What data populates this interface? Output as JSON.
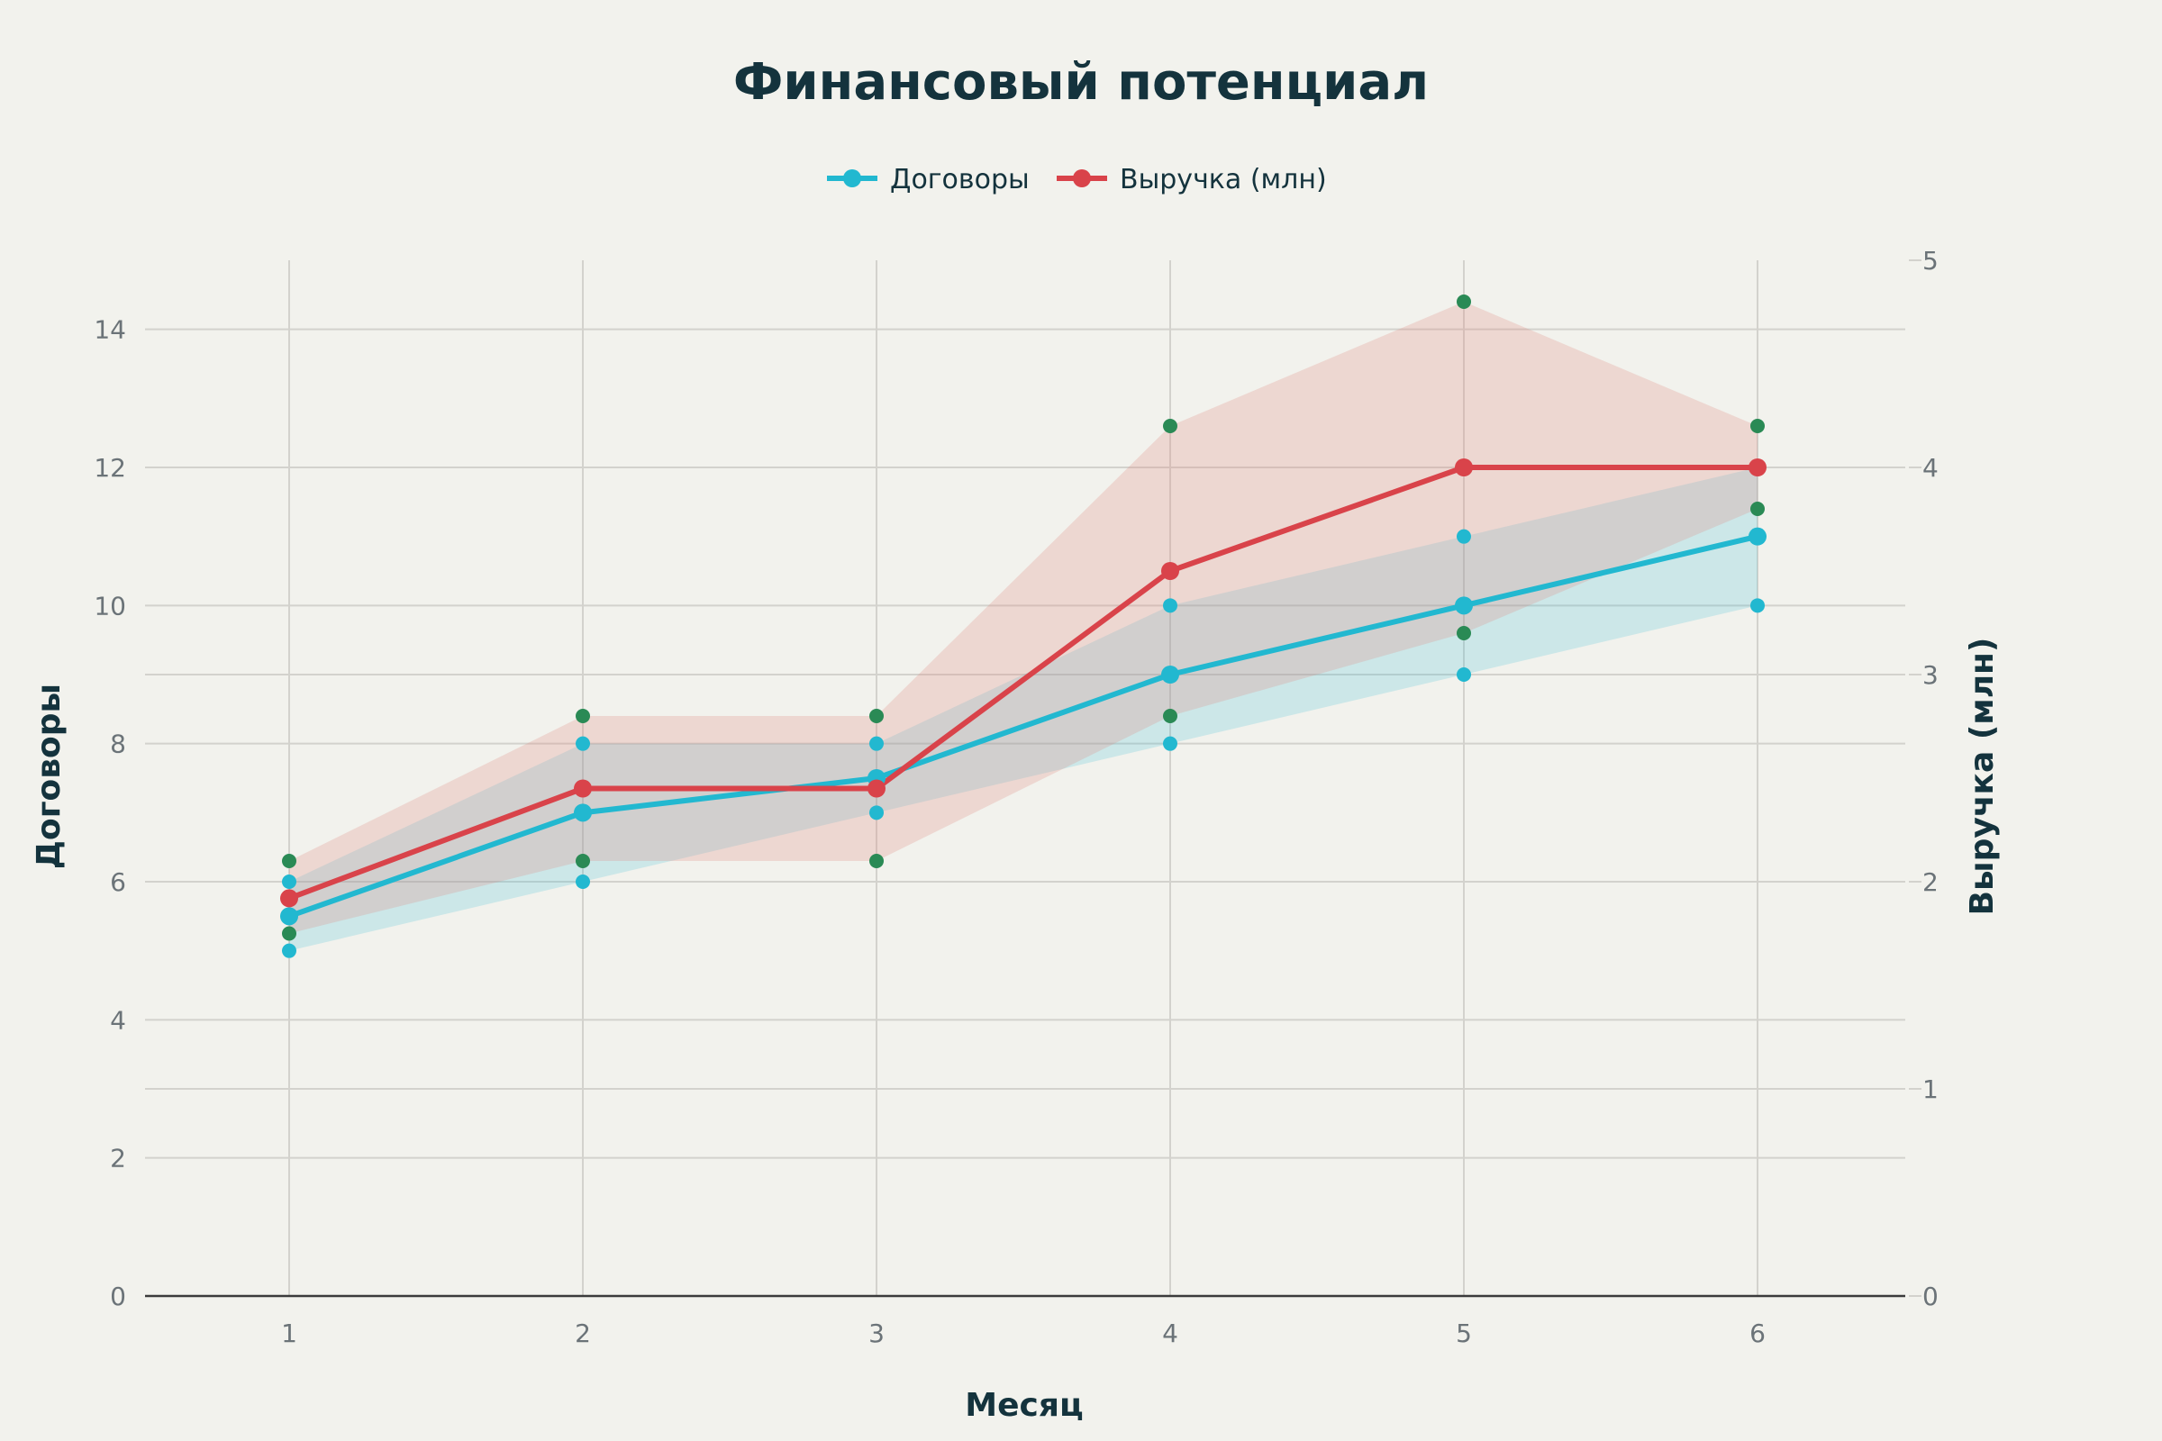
{
  "chart_data": {
    "type": "line",
    "title": "Финансовый потенциал",
    "xlabel": "Месяц",
    "ylabel": "Договоры",
    "y2label": "Выручка (млн)",
    "x": [
      1,
      2,
      3,
      4,
      5,
      6
    ],
    "xticks": [
      "1",
      "2",
      "3",
      "4",
      "5",
      "6"
    ],
    "ylim": [
      0,
      15
    ],
    "yticks": [
      0,
      2,
      4,
      6,
      8,
      10,
      12,
      14
    ],
    "y2lim": [
      0,
      5
    ],
    "y2ticks": [
      0,
      1,
      2,
      3,
      4,
      5
    ],
    "grid": true,
    "legend_position": "top-center",
    "series": [
      {
        "name": "Договоры",
        "axis": "left",
        "color": "#22b8d0",
        "band_color": "#22b8d0",
        "values": [
          5.5,
          7,
          7.5,
          9,
          10,
          11
        ],
        "upper": [
          6,
          8,
          8,
          10,
          11,
          12
        ],
        "lower": [
          5,
          6,
          7,
          8,
          9,
          10
        ]
      },
      {
        "name": "Выручка (млн)",
        "axis": "right",
        "color": "#d9434a",
        "band_color": "#e08880",
        "values": [
          1.92,
          2.45,
          2.45,
          3.5,
          4.0,
          4.0
        ],
        "upper": [
          2.1,
          2.8,
          2.8,
          4.2,
          4.8,
          4.2
        ],
        "lower": [
          1.75,
          2.1,
          2.1,
          2.8,
          3.2,
          3.8
        ],
        "band_marker_color": "#2a8a55"
      }
    ]
  },
  "colors": {
    "background": "#f2f2ed",
    "text_dark": "#14333d",
    "tick_text": "#6b7378",
    "grid": "#d3d2cd",
    "zero_line": "#3b3b3b"
  }
}
